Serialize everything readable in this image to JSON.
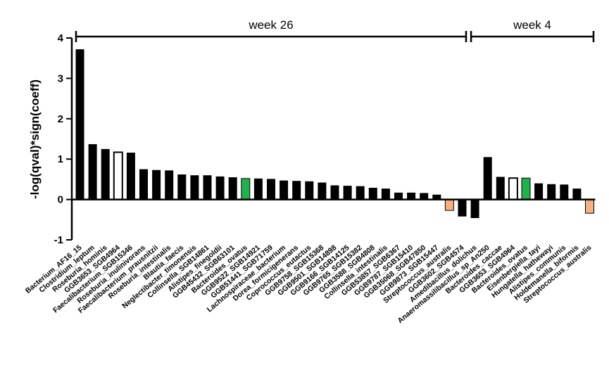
{
  "chart_data": {
    "type": "bar",
    "ylabel": "-log(qval)*sign(coeff)",
    "ylim": [
      -1,
      4
    ],
    "yticks": [
      "-1",
      "0",
      "1",
      "2",
      "3",
      "4"
    ],
    "groups": [
      {
        "label": "week 26",
        "start": 0,
        "end": 30
      },
      {
        "label": "week 4",
        "start": 31,
        "end": 40
      }
    ],
    "categories": [
      "Bacterium_AF16_15",
      "Clostridium_leptum",
      "Roseburia_hominis",
      "GGB3653_SGB4964",
      "Faecalibacterium_SGB15346",
      "Roseburia_inulinivorans",
      "Faecalibacterium_prausnitzii",
      "Roseburia_intestinalis",
      "Blautia_faecis",
      "Neglectibacter_timonensis",
      "Collinsella_SGB14861",
      "Alistipes_finegoldii",
      "GGB45432_SGB63101",
      "Bacteroides_ovatus",
      "GGB9522_SGB14921",
      "GGB51441_SGB71759",
      "Lachnospiraceae_bacterium",
      "Dorea_formicigenerans",
      "Coprococcus_eutactus",
      "GGB9758_SGB15368",
      "GGB9501_SGB14898",
      "GGB9166_SGB14125",
      "GGB9765_SGB15382",
      "GGB3588_SGB4808",
      "Collinsella_intestinalis",
      "GGB53857_SGB6367",
      "GGB9787_SGB15410",
      "GGB35068_SGB47850",
      "GGB9873_SGB15447",
      "Streptococcus_australis",
      "GGB3602_SGB4574",
      "Amedibacillus_dolichus",
      "Anaeromassilibacillus_sp_An250",
      "Bacteroides_caccae",
      "GGB3653_SGB4964",
      "Bacteroides_ovatus",
      "Eisenbergiella_tayi",
      "Hungatella_hathewayi",
      "Alistipes_communis",
      "Holdemanella_biformis",
      "Streptococcus_australis"
    ],
    "values": [
      3.72,
      1.37,
      1.25,
      1.17,
      1.16,
      0.75,
      0.73,
      0.72,
      0.62,
      0.6,
      0.6,
      0.57,
      0.55,
      0.52,
      0.52,
      0.51,
      0.47,
      0.46,
      0.45,
      0.42,
      0.35,
      0.34,
      0.33,
      0.29,
      0.27,
      0.17,
      0.17,
      0.16,
      0.12,
      -0.27,
      -0.42,
      -0.46,
      1.05,
      0.56,
      0.53,
      0.53,
      0.4,
      0.38,
      0.37,
      0.27,
      -0.34
    ],
    "bar_styles": [
      "black",
      "black",
      "black",
      "white",
      "black",
      "black",
      "black",
      "black",
      "black",
      "black",
      "black",
      "black",
      "black",
      "green",
      "black",
      "black",
      "black",
      "black",
      "black",
      "black",
      "black",
      "black",
      "black",
      "black",
      "black",
      "black",
      "black",
      "black",
      "black",
      "peach",
      "black",
      "black",
      "black",
      "black",
      "white",
      "green",
      "black",
      "black",
      "black",
      "black",
      "peach"
    ],
    "colors": {
      "black": "#000000",
      "white": "#ffffff",
      "green": "#22b14c",
      "peach": "#f4b183"
    },
    "grid": false,
    "legend": "none"
  }
}
